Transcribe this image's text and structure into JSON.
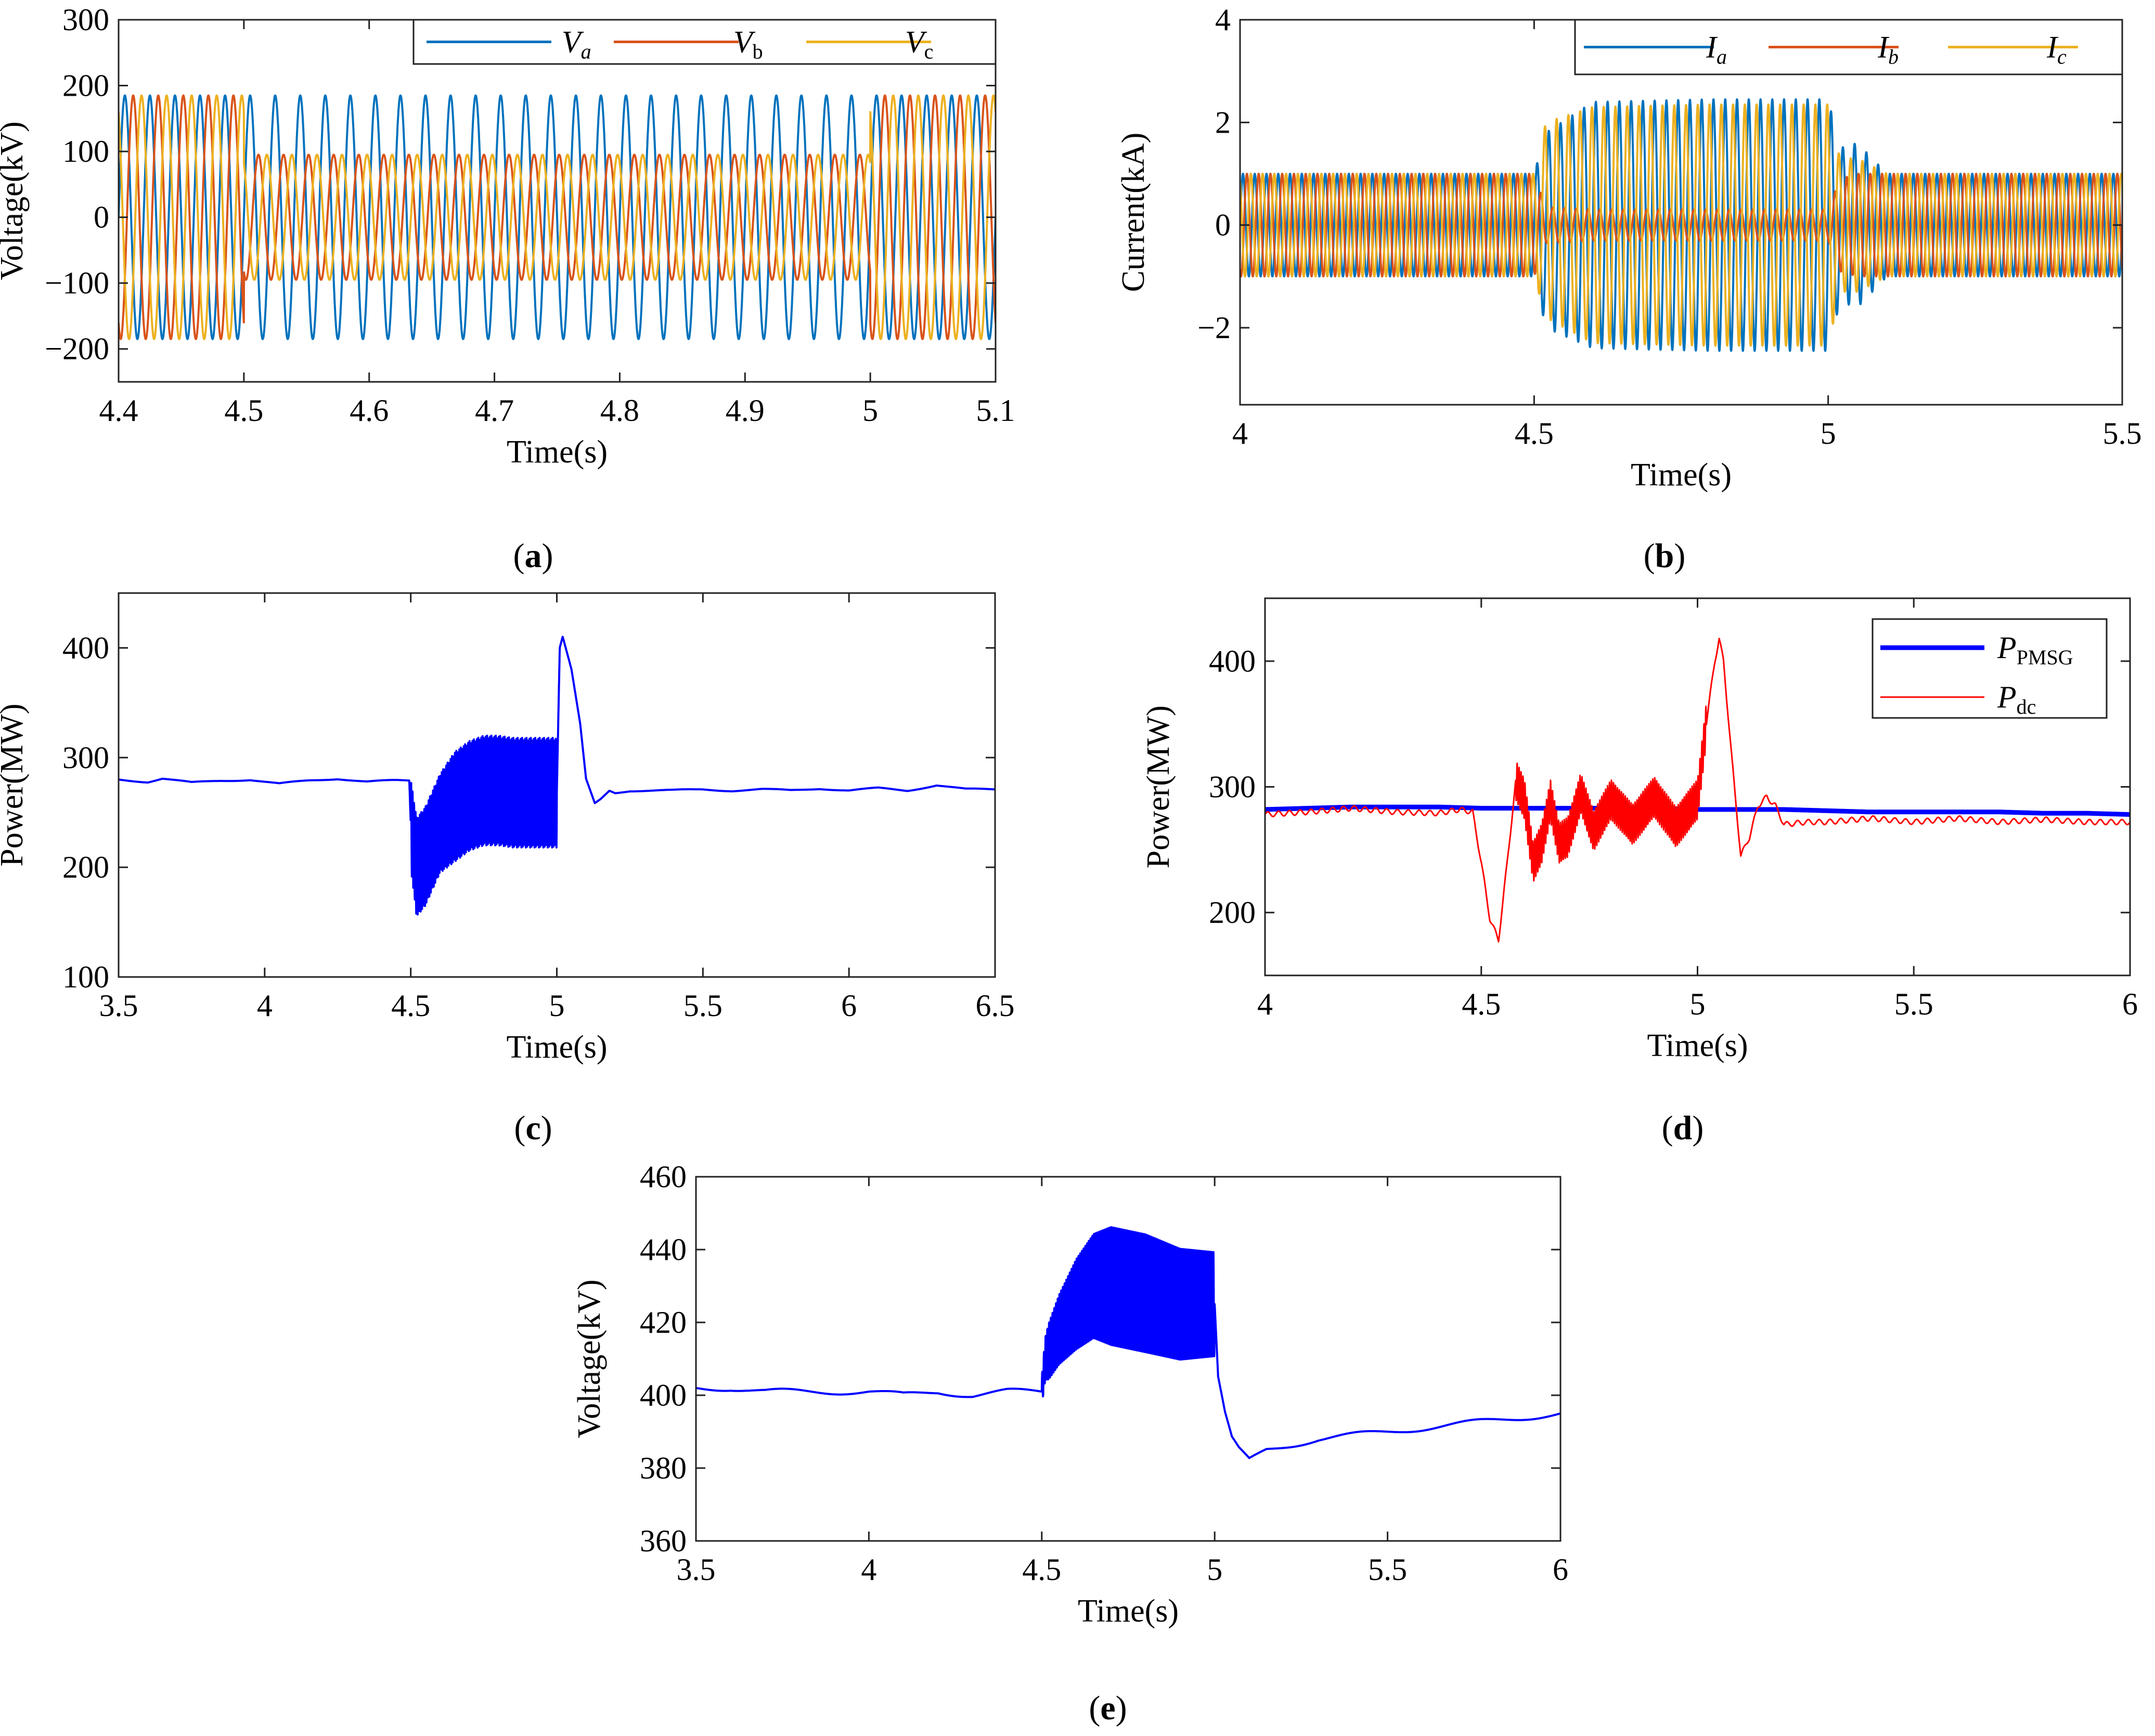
{
  "chart_data": [
    {
      "id": "a",
      "panel_label": "a",
      "type": "line",
      "xlabel": "Time(s)",
      "ylabel": "Voltage(kV)",
      "xlim": [
        4.4,
        5.1
      ],
      "ylim": [
        -250,
        300
      ],
      "xticks": [
        "4.4",
        "4.5",
        "4.6",
        "4.7",
        "4.8",
        "4.9",
        "5",
        "5.1"
      ],
      "yticks": [
        "−200",
        "−100",
        "0",
        "100",
        "200",
        "300"
      ],
      "legend_position": "top-right",
      "series": [
        {
          "name": "V_a",
          "legend_main": "V",
          "legend_sub": "a",
          "color": "#0072BD",
          "waveform": "three-phase sine",
          "frequency_hz": 50,
          "phase_deg": 0,
          "segments": [
            {
              "t_start": 4.4,
              "t_end": 4.5,
              "amplitude": 185,
              "offset": 0
            },
            {
              "t_start": 4.5,
              "t_end": 5.0,
              "amplitude": 185,
              "offset": 0
            },
            {
              "t_start": 5.0,
              "t_end": 5.1,
              "amplitude": 185,
              "offset": 0
            }
          ]
        },
        {
          "name": "V_b",
          "legend_main": "V",
          "legend_sub": "b",
          "color": "#D95319",
          "waveform": "three-phase sine",
          "frequency_hz": 50,
          "phase_deg": -120,
          "segments": [
            {
              "t_start": 4.4,
              "t_end": 4.5,
              "amplitude": 185,
              "offset": 0
            },
            {
              "t_start": 4.5,
              "t_end": 5.0,
              "amplitude": 95,
              "offset": 0
            },
            {
              "t_start": 5.0,
              "t_end": 5.1,
              "amplitude": 185,
              "offset": 0
            }
          ]
        },
        {
          "name": "V_c",
          "legend_main": "V",
          "legend_sub": "c",
          "color": "#EDB120",
          "waveform": "three-phase sine",
          "frequency_hz": 50,
          "phase_deg": 120,
          "segments": [
            {
              "t_start": 4.4,
              "t_end": 4.5,
              "amplitude": 185,
              "offset": 0
            },
            {
              "t_start": 4.5,
              "t_end": 5.0,
              "amplitude": 95,
              "offset": 0
            },
            {
              "t_start": 5.0,
              "t_end": 5.1,
              "amplitude": 185,
              "offset": 0
            }
          ]
        }
      ]
    },
    {
      "id": "b",
      "panel_label": "b",
      "type": "line",
      "xlabel": "Time(s)",
      "ylabel": "Current(kA)",
      "xlim": [
        4.0,
        5.5
      ],
      "ylim": [
        -3.5,
        4
      ],
      "xticks": [
        "4",
        "4.5",
        "5",
        "5.5"
      ],
      "yticks": [
        "−2",
        "0",
        "2",
        "4"
      ],
      "legend_position": "top-right",
      "series": [
        {
          "name": "I_a",
          "legend_main": "I",
          "legend_sub": "a",
          "color": "#0072BD",
          "waveform": "three-phase sine",
          "frequency_hz": 50,
          "phase_deg": 0,
          "envelope_time": [
            4.0,
            4.5,
            4.52,
            4.6,
            4.8,
            5.0,
            5.02,
            5.05,
            5.1,
            5.5
          ],
          "envelope_amp": [
            1.0,
            1.0,
            1.9,
            2.4,
            2.45,
            2.45,
            1.5,
            1.6,
            1.0,
            1.0
          ],
          "envelope_offset": [
            0,
            0,
            -0.1,
            0,
            0,
            0,
            0,
            0,
            0,
            0
          ]
        },
        {
          "name": "I_b",
          "legend_main": "I",
          "legend_sub": "b",
          "color": "#D95319",
          "waveform": "three-phase sine",
          "frequency_hz": 50,
          "phase_deg": -120,
          "envelope_time": [
            4.0,
            4.5,
            4.52,
            4.6,
            4.8,
            5.0,
            5.02,
            5.05,
            5.1,
            5.5
          ],
          "envelope_amp": [
            1.0,
            1.0,
            0.35,
            0.3,
            0.3,
            0.3,
            0.9,
            1.0,
            1.0,
            1.0
          ],
          "envelope_offset": [
            0,
            0,
            0,
            0,
            0,
            0,
            0,
            0,
            0,
            0
          ]
        },
        {
          "name": "I_c",
          "legend_main": "I",
          "legend_sub": "c",
          "color": "#EDB120",
          "waveform": "three-phase sine",
          "frequency_hz": 50,
          "phase_deg": 120,
          "envelope_time": [
            4.0,
            4.5,
            4.52,
            4.6,
            4.8,
            5.0,
            5.02,
            5.05,
            5.1,
            5.5
          ],
          "envelope_amp": [
            1.0,
            1.0,
            1.9,
            2.3,
            2.35,
            2.35,
            1.3,
            1.3,
            1.0,
            1.0
          ],
          "envelope_offset": [
            0,
            0,
            0.1,
            0,
            0,
            0,
            0,
            0,
            0,
            0
          ]
        }
      ]
    },
    {
      "id": "c",
      "panel_label": "c",
      "type": "line",
      "xlabel": "Time(s)",
      "ylabel": "Power(MW)",
      "xlim": [
        3.5,
        6.5
      ],
      "ylim": [
        100,
        450
      ],
      "xticks": [
        "3.5",
        "4",
        "4.5",
        "5",
        "5.5",
        "6",
        "6.5"
      ],
      "yticks": [
        "100",
        "200",
        "300",
        "400"
      ],
      "series": [
        {
          "name": "",
          "color": "#0000FF",
          "base_time": [
            3.5,
            3.6,
            3.65,
            3.75,
            3.85,
            3.95,
            4.05,
            4.15,
            4.25,
            4.35,
            4.45,
            4.495,
            4.5,
            4.52,
            4.55,
            4.6,
            4.65,
            4.7,
            4.75,
            4.8,
            4.85,
            4.9,
            4.95,
            5.0,
            5.01,
            5.02,
            5.05,
            5.08,
            5.1,
            5.13,
            5.15,
            5.18,
            5.2,
            5.25,
            5.3,
            5.4,
            5.5,
            5.6,
            5.7,
            5.8,
            5.9,
            6.0,
            6.1,
            6.2,
            6.3,
            6.4,
            6.5
          ],
          "base_values": [
            280,
            278,
            281,
            277,
            279,
            280,
            276,
            279,
            281,
            278,
            279,
            279,
            240,
            200,
            210,
            240,
            255,
            265,
            270,
            270,
            268,
            268,
            268,
            268,
            400,
            410,
            380,
            330,
            280,
            258,
            262,
            270,
            268,
            270,
            270,
            270,
            271,
            270,
            271,
            270,
            272,
            270,
            272,
            270,
            275,
            271,
            271
          ],
          "oscillation_start": 4.5,
          "oscillation_end": 5.0,
          "oscillation_time": [
            4.5,
            4.52,
            4.55,
            4.6,
            4.65,
            4.7,
            4.8,
            5.0
          ],
          "oscillation_amp": [
            40,
            45,
            45,
            45,
            50,
            50,
            50,
            50
          ],
          "oscillation_hz": 200
        }
      ]
    },
    {
      "id": "d",
      "panel_label": "d",
      "type": "line",
      "xlabel": "Time(s)",
      "ylabel": "Power(MW)",
      "xlim": [
        4.0,
        6.0
      ],
      "ylim": [
        150,
        450
      ],
      "xticks": [
        "4",
        "4.5",
        "5",
        "5.5",
        "6"
      ],
      "yticks": [
        "200",
        "300",
        "400"
      ],
      "legend_position": "top-right",
      "series": [
        {
          "name": "P_PMSG",
          "legend_main": "P",
          "legend_sub": "PMSG",
          "color": "#0000FF",
          "line_width": 9,
          "x": [
            4.0,
            4.1,
            4.2,
            4.3,
            4.4,
            4.5,
            4.6,
            4.7,
            4.8,
            4.9,
            5.0,
            5.1,
            5.2,
            5.3,
            5.4,
            5.5,
            5.6,
            5.7,
            5.8,
            5.9,
            6.0
          ],
          "values": [
            282,
            283,
            284,
            284,
            284,
            283,
            283,
            283,
            283,
            283,
            282,
            282,
            282,
            281,
            280,
            280,
            280,
            280,
            279,
            279,
            278
          ]
        },
        {
          "name": "P_dc",
          "legend_main": "P",
          "legend_sub": "dc",
          "color": "#FF0000",
          "line_width": 3,
          "x": [
            4.0,
            4.1,
            4.2,
            4.3,
            4.4,
            4.45,
            4.48,
            4.5,
            4.52,
            4.54,
            4.56,
            4.58,
            4.6,
            4.62,
            4.64,
            4.66,
            4.68,
            4.7,
            4.73,
            4.76,
            4.8,
            4.85,
            4.9,
            4.95,
            5.0,
            5.02,
            5.04,
            5.05,
            5.06,
            5.08,
            5.1,
            5.12,
            5.14,
            5.16,
            5.18,
            5.2,
            5.25,
            5.3,
            5.4,
            5.5,
            5.6,
            5.7,
            5.8,
            5.9,
            6.0
          ],
          "values": [
            278,
            280,
            283,
            280,
            279,
            282,
            280,
            240,
            195,
            178,
            240,
            305,
            290,
            240,
            255,
            290,
            255,
            260,
            295,
            265,
            290,
            270,
            292,
            268,
            290,
            350,
            400,
            418,
            400,
            320,
            245,
            260,
            285,
            292,
            285,
            270,
            272,
            272,
            275,
            272,
            275,
            272,
            274,
            272,
            272
          ],
          "oscillation_start": 4.58,
          "oscillation_end": 5.02,
          "oscillation_amp": 16,
          "oscillation_hz": 220
        }
      ]
    },
    {
      "id": "e",
      "panel_label": "e",
      "type": "line",
      "xlabel": "Time(s)",
      "ylabel": "Voltage(kV)",
      "xlim": [
        3.5,
        6.0
      ],
      "ylim": [
        360,
        460
      ],
      "xticks": [
        "3.5",
        "4",
        "4.5",
        "5",
        "5.5",
        "6"
      ],
      "yticks": [
        "360",
        "380",
        "400",
        "420",
        "440",
        "460"
      ],
      "series": [
        {
          "name": "",
          "color": "#0000FF",
          "base_time": [
            3.5,
            3.6,
            3.7,
            3.8,
            3.9,
            4.0,
            4.1,
            4.2,
            4.3,
            4.4,
            4.5,
            4.51,
            4.55,
            4.6,
            4.65,
            4.7,
            4.8,
            4.9,
            4.95,
            5.0,
            5.01,
            5.03,
            5.05,
            5.07,
            5.1,
            5.15,
            5.2,
            5.3,
            5.4,
            5.5,
            5.6,
            5.7,
            5.8,
            5.9,
            6.0
          ],
          "base_values": [
            402,
            402,
            401,
            401,
            401,
            401,
            400,
            401,
            400,
            401,
            401,
            410,
            418,
            425,
            430,
            430,
            428,
            425,
            425,
            425,
            405,
            395,
            388,
            385,
            382,
            385,
            386,
            388,
            389,
            390,
            391,
            392,
            393,
            394,
            395
          ],
          "oscillation_start": 4.5,
          "oscillation_end": 5.0,
          "oscillation_time": [
            4.5,
            4.52,
            4.55,
            4.6,
            4.7,
            4.8,
            4.9,
            5.0
          ],
          "oscillation_amp": [
            4,
            8,
            10,
            13,
            17,
            17,
            16,
            15
          ],
          "oscillation_hz": 200
        }
      ]
    }
  ]
}
